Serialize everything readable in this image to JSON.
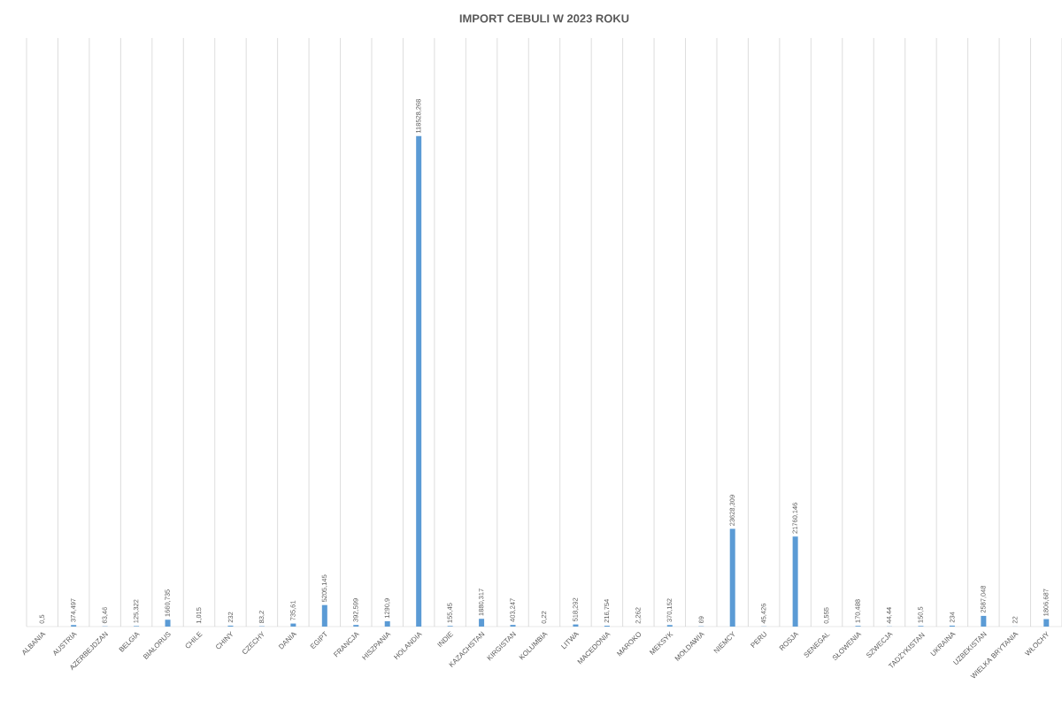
{
  "chart_data": {
    "type": "bar",
    "title": "IMPORT CEBULI W 2023 ROKU",
    "categories": [
      "ALBANIA",
      "AUSTRIA",
      "AZERBEJDZAN",
      "BELGIA",
      "BIAŁORUS",
      "CHILE",
      "CHINY",
      "CZECHY",
      "DANIA",
      "EGIPT",
      "FRANCJA",
      "HISZPANIA",
      "HOLANDIA",
      "INDIE",
      "KAZACHSTAN",
      "KIRGISTAN",
      "KOLUMBIA",
      "LITWA",
      "MACEDONIA",
      "MAROKO",
      "MEKSYK",
      "MOŁDAWIA",
      "NIEMCY",
      "PERU",
      "ROSJA",
      "SENEGAL",
      "SŁOWENIA",
      "SZWECJA",
      "TADŻYKISTAN",
      "UKRAINA",
      "UZBEKISTAN",
      "WIELKA BRYTANIA",
      "WŁOCHY"
    ],
    "values": [
      0.5,
      374.497,
      63.46,
      125.322,
      1660.735,
      1.015,
      232,
      83.2,
      735.61,
      5205.145,
      392.599,
      1290.9,
      118528.268,
      155.45,
      1880.317,
      403.247,
      0.22,
      518.292,
      216.754,
      2.262,
      370.152,
      69,
      23628.309,
      45.426,
      21760.146,
      0.555,
      170.488,
      44.44,
      150.5,
      234,
      2587.048,
      22,
      1806.687
    ],
    "value_labels": [
      "0,5",
      "374,497",
      "63,46",
      "125,322",
      "1660,735",
      "1,015",
      "232",
      "83,2",
      "735,61",
      "5205,145",
      "392,599",
      "1290,9",
      "118528,268",
      "155,45",
      "1880,317",
      "403,247",
      "0,22",
      "518,292",
      "216,754",
      "2,262",
      "370,152",
      "69",
      "23628,309",
      "45,426",
      "21760,146",
      "0,555",
      "170,488",
      "44,44",
      "150,5",
      "234",
      "2587,048",
      "22",
      "1806,687"
    ],
    "color": "#5b9bd5",
    "grid": "x"
  }
}
